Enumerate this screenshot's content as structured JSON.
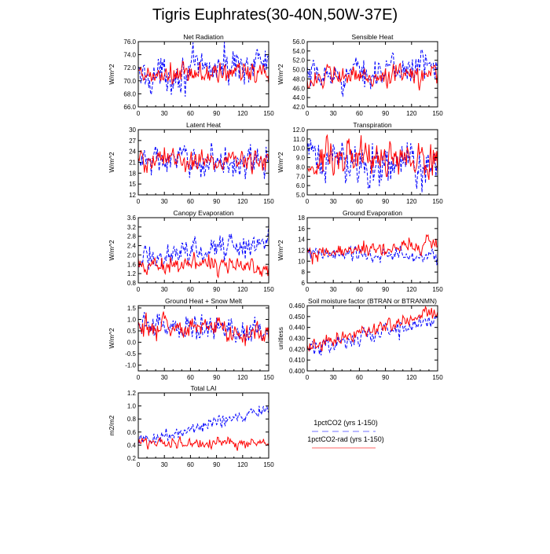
{
  "title": "Tigris Euphrates(30-40N,50W-37E)",
  "legend": {
    "items": [
      {
        "label": "1pctCO2 (yrs 1-150)",
        "color": "#0000ff",
        "dash": true
      },
      {
        "label": "1pctCO2-rad (yrs 1-150)",
        "color": "#ff0000",
        "dash": false
      }
    ]
  },
  "chart_data": [
    {
      "type": "line",
      "title": "Net Radiation",
      "ylabel": "W/m^2",
      "xlim": [
        0,
        150
      ],
      "xticks": [
        0,
        30,
        60,
        90,
        120,
        150
      ],
      "ylim": [
        66,
        76
      ],
      "yticks": [
        66.0,
        68.0,
        70.0,
        72.0,
        74.0,
        76.0
      ],
      "ytick_labels": [
        "66.0",
        "68.0",
        "70.0",
        "72.0",
        "74.0",
        "76.0"
      ],
      "series": [
        {
          "name": "1pctCO2 (yrs 1-150)",
          "start": 70.5,
          "end": 73.0,
          "amp": 1.7,
          "color": "#0000ff"
        },
        {
          "name": "1pctCO2-rad (yrs 1-150)",
          "start": 70.5,
          "end": 71.5,
          "amp": 1.2,
          "color": "#ff0000"
        }
      ]
    },
    {
      "type": "line",
      "title": "Sensible Heat",
      "ylabel": "W/m^2",
      "xlim": [
        0,
        150
      ],
      "xticks": [
        0,
        30,
        60,
        90,
        120,
        150
      ],
      "ylim": [
        42,
        56
      ],
      "yticks": [
        42.0,
        44.0,
        46.0,
        48.0,
        50.0,
        52.0,
        54.0,
        56.0
      ],
      "ytick_labels": [
        "42.0",
        "44.0",
        "46.0",
        "48.0",
        "50.0",
        "52.0",
        "54.0",
        "56.0"
      ],
      "series": [
        {
          "name": "1pctCO2 (yrs 1-150)",
          "start": 48.0,
          "end": 51.0,
          "amp": 2.0,
          "color": "#0000ff"
        },
        {
          "name": "1pctCO2-rad (yrs 1-150)",
          "start": 48.0,
          "end": 49.0,
          "amp": 1.5,
          "color": "#ff0000"
        }
      ]
    },
    {
      "type": "line",
      "title": "Latent Heat",
      "ylabel": "W/m^2",
      "xlim": [
        0,
        150
      ],
      "xticks": [
        0,
        30,
        60,
        90,
        120,
        150
      ],
      "ylim": [
        12,
        30
      ],
      "yticks": [
        12,
        15,
        18,
        21,
        24,
        27,
        30
      ],
      "ytick_labels": [
        "12",
        "15",
        "18",
        "21",
        "24",
        "27",
        "30"
      ],
      "series": [
        {
          "name": "1pctCO2 (yrs 1-150)",
          "start": 21.5,
          "end": 21.0,
          "amp": 2.6,
          "color": "#0000ff"
        },
        {
          "name": "1pctCO2-rad (yrs 1-150)",
          "start": 21.5,
          "end": 21.5,
          "amp": 2.2,
          "color": "#ff0000"
        }
      ]
    },
    {
      "type": "line",
      "title": "Transpiration",
      "ylabel": "W/m^2",
      "xlim": [
        0,
        150
      ],
      "xticks": [
        0,
        30,
        60,
        90,
        120,
        150
      ],
      "ylim": [
        5,
        12
      ],
      "yticks": [
        5.0,
        6.0,
        7.0,
        8.0,
        9.0,
        10.0,
        11.0,
        12.0
      ],
      "ytick_labels": [
        "5.0",
        "6.0",
        "7.0",
        "8.0",
        "9.0",
        "10.0",
        "11.0",
        "12.0"
      ],
      "series": [
        {
          "name": "1pctCO2 (yrs 1-150)",
          "start": 8.8,
          "end": 8.0,
          "amp": 1.5,
          "color": "#0000ff"
        },
        {
          "name": "1pctCO2-rad (yrs 1-150)",
          "start": 8.8,
          "end": 8.6,
          "amp": 1.2,
          "color": "#ff0000"
        }
      ]
    },
    {
      "type": "line",
      "title": "Canopy Evaporation",
      "ylabel": "W/m^2",
      "xlim": [
        0,
        150
      ],
      "xticks": [
        0,
        30,
        60,
        90,
        120,
        150
      ],
      "ylim": [
        0.8,
        3.6
      ],
      "yticks": [
        0.8,
        1.2,
        1.6,
        2.0,
        2.4,
        2.8,
        3.2,
        3.6
      ],
      "ytick_labels": [
        "0.8",
        "1.2",
        "1.6",
        "2.0",
        "2.4",
        "2.8",
        "3.2",
        "3.6"
      ],
      "series": [
        {
          "name": "1pctCO2 (yrs 1-150)",
          "start": 1.8,
          "end": 2.6,
          "amp": 0.35,
          "color": "#0000ff"
        },
        {
          "name": "1pctCO2-rad (yrs 1-150)",
          "start": 1.6,
          "end": 1.5,
          "amp": 0.25,
          "color": "#ff0000"
        }
      ]
    },
    {
      "type": "line",
      "title": "Ground Evaporation",
      "ylabel": "W/m^2",
      "xlim": [
        0,
        150
      ],
      "xticks": [
        0,
        30,
        60,
        90,
        120,
        150
      ],
      "ylim": [
        6,
        18
      ],
      "yticks": [
        6,
        8,
        10,
        12,
        14,
        16,
        18
      ],
      "ytick_labels": [
        "6",
        "8",
        "10",
        "12",
        "14",
        "16",
        "18"
      ],
      "series": [
        {
          "name": "1pctCO2 (yrs 1-150)",
          "start": 11.3,
          "end": 10.8,
          "amp": 0.9,
          "color": "#0000ff"
        },
        {
          "name": "1pctCO2-rad (yrs 1-150)",
          "start": 11.0,
          "end": 13.5,
          "amp": 0.9,
          "color": "#ff0000"
        }
      ]
    },
    {
      "type": "line",
      "title": "Ground Heat + Snow Melt",
      "ylabel": "W/m^2",
      "xlim": [
        0,
        150
      ],
      "xticks": [
        0,
        30,
        60,
        90,
        120,
        150
      ],
      "ylim": [
        -1.25,
        1.6
      ],
      "yticks": [
        -1.0,
        -0.5,
        0.0,
        0.5,
        1.0,
        1.5
      ],
      "ytick_labels": [
        "-1.0",
        "-0.5",
        "0.0",
        "0.5",
        "1.0",
        "1.5"
      ],
      "series": [
        {
          "name": "1pctCO2 (yrs 1-150)",
          "start": 0.75,
          "end": 0.5,
          "amp": 0.35,
          "color": "#0000ff"
        },
        {
          "name": "1pctCO2-rad (yrs 1-150)",
          "start": 0.8,
          "end": 0.4,
          "amp": 0.3,
          "color": "#ff0000"
        }
      ]
    },
    {
      "type": "line",
      "title": "Soil moisture factor (BTRAN or BTRANMN)",
      "ylabel": "unitless",
      "xlim": [
        0,
        150
      ],
      "xticks": [
        0,
        30,
        60,
        90,
        120,
        150
      ],
      "ylim": [
        0.4,
        0.46
      ],
      "yticks": [
        0.4,
        0.41,
        0.42,
        0.43,
        0.44,
        0.45,
        0.46
      ],
      "ytick_labels": [
        "0.400",
        "0.410",
        "0.420",
        "0.430",
        "0.440",
        "0.450",
        "0.460"
      ],
      "series": [
        {
          "name": "1pctCO2 (yrs 1-150)",
          "start": 0.42,
          "end": 0.447,
          "amp": 0.005,
          "color": "#0000ff"
        },
        {
          "name": "1pctCO2-rad (yrs 1-150)",
          "start": 0.421,
          "end": 0.454,
          "amp": 0.004,
          "color": "#ff0000"
        }
      ]
    },
    {
      "type": "line",
      "title": "Total LAI",
      "ylabel": "m2/m2",
      "xlim": [
        0,
        150
      ],
      "xticks": [
        0,
        30,
        60,
        90,
        120,
        150
      ],
      "ylim": [
        0.2,
        1.2
      ],
      "yticks": [
        0.2,
        0.4,
        0.6,
        0.8,
        1.0,
        1.2
      ],
      "ytick_labels": [
        "0.2",
        "0.4",
        "0.6",
        "0.8",
        "1.0",
        "1.2"
      ],
      "series": [
        {
          "name": "1pctCO2 (yrs 1-150)",
          "start": 0.45,
          "end": 0.95,
          "amp": 0.06,
          "color": "#0000ff"
        },
        {
          "name": "1pctCO2-rad (yrs 1-150)",
          "start": 0.45,
          "end": 0.42,
          "amp": 0.05,
          "color": "#ff0000"
        }
      ]
    }
  ]
}
